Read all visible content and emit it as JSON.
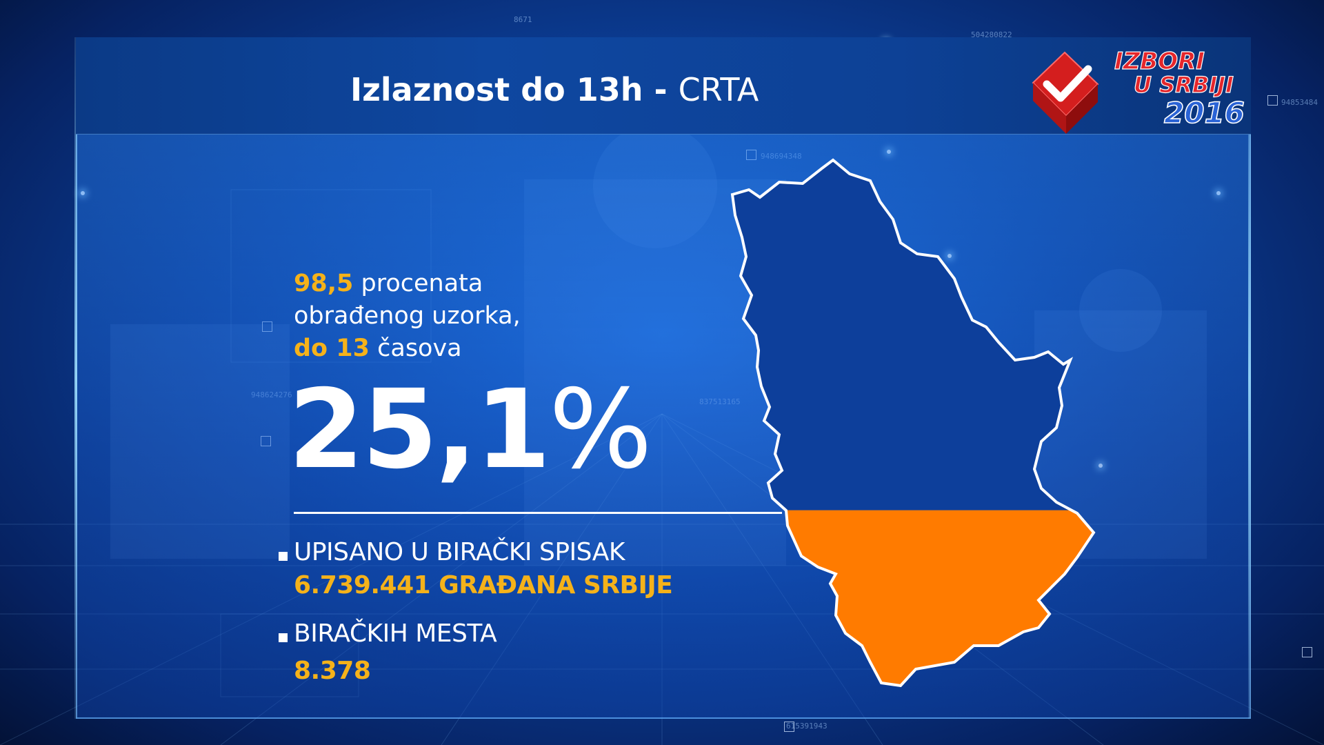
{
  "header": {
    "title_bold": "Izlaznost do 13h",
    "title_separator": " - ",
    "title_source": "CRTA"
  },
  "logo": {
    "line1": "IZBORI",
    "line2": "U SRBIJI",
    "year": "2016",
    "icon": "checkmark-ballot-icon"
  },
  "sample": {
    "percent": "98,5",
    "text1": " procenata",
    "text2": "obrađenog uzorka,",
    "hour_label": "do 13",
    "text3": " časova"
  },
  "turnout": {
    "value": "25,1",
    "unit": "%"
  },
  "stats": {
    "registered_label": "UPISANO U BIRAČKI SPISAK",
    "registered_value": "6.739.441 GRAĐANA SRBIJE",
    "stations_label": "BIRAČKIH MESTA",
    "stations_value": "8.378"
  },
  "map": {
    "name": "serbia-map",
    "fill_fraction": 0.251,
    "color_top": "#0d3f9b",
    "color_bottom": "#ff7b00",
    "outline": "#ffffff"
  },
  "colors": {
    "accent": "#f5b21a",
    "background": "#0c3f98"
  }
}
